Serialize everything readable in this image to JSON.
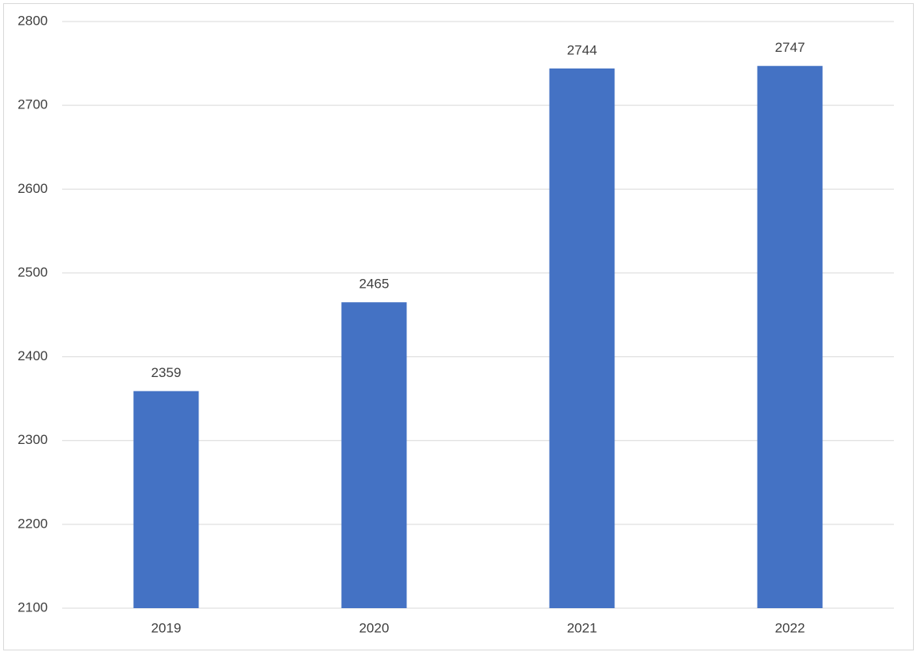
{
  "chart_data": {
    "type": "bar",
    "categories": [
      "2019",
      "2020",
      "2021",
      "2022"
    ],
    "values": [
      2359,
      2465,
      2744,
      2747
    ],
    "color": "#4472c4",
    "ylim": [
      2100,
      2800
    ],
    "yticks": [
      2100,
      2200,
      2300,
      2400,
      2500,
      2600,
      2700,
      2800
    ],
    "grid": true
  }
}
